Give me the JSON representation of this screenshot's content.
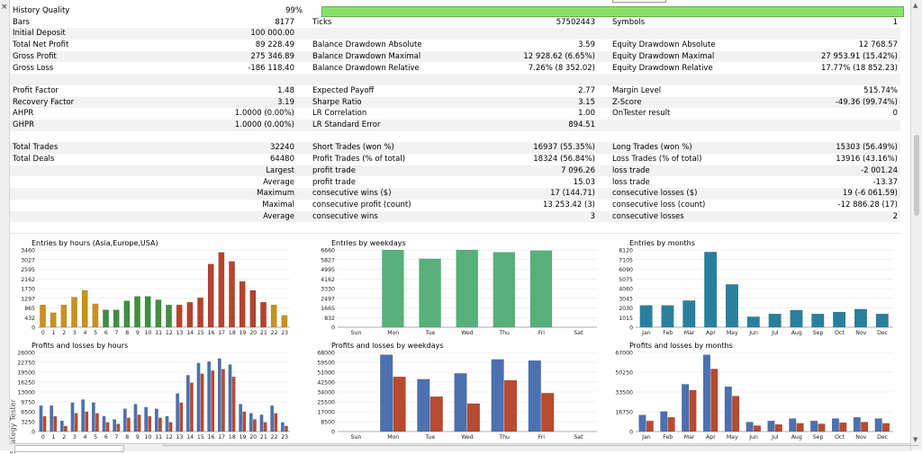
{
  "window": {
    "side_label": "Strategy Tester"
  },
  "history_quality": {
    "label": "History Quality",
    "value": "99%",
    "fill": 0.99
  },
  "stats_rows": [
    {
      "alt": false,
      "cells": [
        [
          "Bars",
          "8177"
        ],
        [
          "Ticks",
          "57502443"
        ],
        [
          "Symbols",
          "1"
        ]
      ]
    },
    {
      "alt": true,
      "cells": [
        [
          "Initial Deposit",
          "100 000.00"
        ],
        [
          "",
          ""
        ],
        [
          "",
          ""
        ]
      ]
    },
    {
      "alt": false,
      "cells": [
        [
          "Total Net Profit",
          "89 228.49"
        ],
        [
          "Balance Drawdown Absolute",
          "3.59"
        ],
        [
          "Equity Drawdown Absolute",
          "12 768.57"
        ]
      ]
    },
    {
      "alt": true,
      "cells": [
        [
          "Gross Profit",
          "275 346.89"
        ],
        [
          "Balance Drawdown Maximal",
          "12 928.62 (6.65%)"
        ],
        [
          "Equity Drawdown Maximal",
          "27 953.91 (15.42%)"
        ]
      ]
    },
    {
      "alt": false,
      "cells": [
        [
          "Gross Loss",
          "-186 118.40"
        ],
        [
          "Balance Drawdown Relative",
          "7.26% (8 352.02)"
        ],
        [
          "Equity Drawdown Relative",
          "17.77% (18 852.23)"
        ]
      ]
    },
    {
      "alt": true,
      "cells": [
        [
          "",
          ""
        ],
        [
          "",
          ""
        ],
        [
          "",
          ""
        ]
      ]
    },
    {
      "alt": false,
      "cells": [
        [
          "Profit Factor",
          "1.48"
        ],
        [
          "Expected Payoff",
          "2.77"
        ],
        [
          "Margin Level",
          "515.74%"
        ]
      ]
    },
    {
      "alt": true,
      "cells": [
        [
          "Recovery Factor",
          "3.19"
        ],
        [
          "Sharpe Ratio",
          "3.15"
        ],
        [
          "Z-Score",
          "-49.36 (99.74%)"
        ]
      ]
    },
    {
      "alt": false,
      "cells": [
        [
          "AHPR",
          "1.0000 (0.00%)"
        ],
        [
          "LR Correlation",
          "1.00"
        ],
        [
          "OnTester result",
          "0"
        ]
      ]
    },
    {
      "alt": true,
      "cells": [
        [
          "GHPR",
          "1.0000 (0.00%)"
        ],
        [
          "LR Standard Error",
          "894.51"
        ],
        [
          "",
          ""
        ]
      ]
    },
    {
      "alt": false,
      "cells": [
        [
          "",
          ""
        ],
        [
          "",
          ""
        ],
        [
          "",
          ""
        ]
      ]
    },
    {
      "alt": true,
      "cells": [
        [
          "Total Trades",
          "32240"
        ],
        [
          "Short Trades (won %)",
          "16937 (55.35%)"
        ],
        [
          "Long Trades (won %)",
          "15303 (56.49%)"
        ]
      ]
    },
    {
      "alt": false,
      "cells": [
        [
          "Total Deals",
          "64480"
        ],
        [
          "Profit Trades (% of total)",
          "18324 (56.84%)"
        ],
        [
          "Loss Trades (% of total)",
          "13916 (43.16%)"
        ]
      ]
    },
    {
      "alt": true,
      "cells": [
        [
          "Largest",
          ""
        ],
        [
          "profit trade",
          "7 096.26"
        ],
        [
          "loss trade",
          "-2 001.24"
        ]
      ],
      "right_first": true
    },
    {
      "alt": false,
      "cells": [
        [
          "Average",
          ""
        ],
        [
          "profit trade",
          "15.03"
        ],
        [
          "loss trade",
          "-13.37"
        ]
      ],
      "right_first": true
    },
    {
      "alt": true,
      "cells": [
        [
          "Maximum",
          ""
        ],
        [
          "consecutive wins ($)",
          "17 (144.71)"
        ],
        [
          "consecutive losses ($)",
          "19 (-6 061.59)"
        ]
      ],
      "right_first": true
    },
    {
      "alt": false,
      "cells": [
        [
          "Maximal",
          ""
        ],
        [
          "consecutive profit (count)",
          "13 253.42 (3)"
        ],
        [
          "consecutive loss (count)",
          "-12 886.28 (17)"
        ]
      ],
      "right_first": true
    },
    {
      "alt": true,
      "cells": [
        [
          "Average",
          ""
        ],
        [
          "consecutive wins",
          "3"
        ],
        [
          "consecutive losses",
          "2"
        ]
      ],
      "right_first": true
    }
  ],
  "chart_data": [
    {
      "type": "bar",
      "title": "Entries by hours (Asia,Europe,USA)",
      "categories": [
        "0",
        "1",
        "2",
        "3",
        "4",
        "5",
        "6",
        "7",
        "8",
        "9",
        "10",
        "11",
        "12",
        "13",
        "14",
        "15",
        "16",
        "17",
        "18",
        "19",
        "20",
        "21",
        "22",
        "23"
      ],
      "yticks": [
        "3460",
        "3027",
        "2595",
        "2162",
        "1730",
        "1297",
        "865",
        "432",
        "0"
      ],
      "ylim": [
        0,
        3460
      ],
      "series": [
        {
          "values": [
            1000,
            650,
            1000,
            1350,
            1650,
            1050,
            780,
            780,
            1180,
            1380,
            1380,
            1230,
            1000,
            1000,
            1120,
            1320,
            2830,
            3350,
            2950,
            2050,
            1650,
            1120,
            1000,
            530
          ]
        }
      ],
      "colors": [
        "#c8921e",
        "#c8921e",
        "#c8921e",
        "#c8921e",
        "#c8921e",
        "#c8921e",
        "#3f8f3f",
        "#3f8f3f",
        "#3f8f3f",
        "#3f8f3f",
        "#3f8f3f",
        "#3f8f3f",
        "#3f8f3f",
        "#b5442e",
        "#b5442e",
        "#b5442e",
        "#b5442e",
        "#b5442e",
        "#b5442e",
        "#b5442e",
        "#b5442e",
        "#b5442e",
        "#c8921e",
        "#c8921e"
      ]
    },
    {
      "type": "bar",
      "title": "Entries by weekdays",
      "categories": [
        "Sun",
        "Mon",
        "Tue",
        "Wed",
        "Thu",
        "Fri",
        "Sat"
      ],
      "yticks": [
        "6660",
        "5827",
        "4995",
        "4162",
        "3330",
        "2497",
        "1665",
        "832",
        "0"
      ],
      "ylim": [
        0,
        6660
      ],
      "series": [
        {
          "values": [
            0,
            6660,
            5900,
            6660,
            6460,
            6600,
            0
          ]
        }
      ],
      "colors": [
        "#57b07a"
      ]
    },
    {
      "type": "bar",
      "title": "Entries by months",
      "categories": [
        "Jan",
        "Feb",
        "Mar",
        "Apr",
        "May",
        "Jun",
        "Jul",
        "Aug",
        "Sep",
        "Oct",
        "Nov",
        "Dec"
      ],
      "yticks": [
        "8120",
        "7105",
        "6090",
        "5075",
        "4060",
        "3045",
        "2030",
        "1015",
        "0"
      ],
      "ylim": [
        0,
        8120
      ],
      "series": [
        {
          "values": [
            2300,
            2300,
            2800,
            7900,
            4500,
            1100,
            1400,
            1800,
            1400,
            1600,
            1900,
            1400
          ]
        }
      ],
      "colors": [
        "#2a7f9e"
      ]
    },
    {
      "type": "bar",
      "title": "Profits and losses by hours",
      "categories": [
        "0",
        "1",
        "2",
        "3",
        "4",
        "5",
        "6",
        "7",
        "8",
        "9",
        "10",
        "11",
        "12",
        "13",
        "14",
        "15",
        "16",
        "17",
        "18",
        "19",
        "20",
        "21",
        "22",
        "23"
      ],
      "yticks": [
        "26000",
        "22750",
        "19500",
        "16250",
        "13000",
        "9750",
        "6500",
        "3250",
        "0"
      ],
      "ylim": [
        0,
        26000
      ],
      "series": [
        {
          "values": [
            8500,
            8500,
            3500,
            9500,
            10500,
            9500,
            5000,
            4000,
            7500,
            9000,
            8000,
            7500,
            5000,
            12500,
            18500,
            22500,
            23000,
            24000,
            22000,
            9000,
            6000,
            5500,
            8500,
            3000
          ]
        },
        {
          "values": [
            5000,
            5000,
            1800,
            6000,
            6500,
            6000,
            3000,
            2500,
            4500,
            5500,
            5000,
            4500,
            3000,
            9500,
            16000,
            19000,
            20000,
            20500,
            18000,
            6500,
            4000,
            3000,
            6000,
            1800
          ]
        }
      ],
      "colors": [
        "#4c70b0",
        "#b84a30"
      ]
    },
    {
      "type": "bar",
      "title": "Profits and losses by weekdays",
      "categories": [
        "Sun",
        "Mon",
        "Tue",
        "Wed",
        "Thu",
        "Fri",
        "Sat"
      ],
      "yticks": [
        "68000",
        "59500",
        "51000",
        "42500",
        "34000",
        "25500",
        "17000",
        "8500",
        "0"
      ],
      "ylim": [
        0,
        68000
      ],
      "series": [
        {
          "values": [
            0,
            66000,
            45000,
            50000,
            62000,
            61000,
            0
          ]
        },
        {
          "values": [
            0,
            47000,
            30000,
            24000,
            44000,
            33000,
            0
          ]
        }
      ],
      "colors": [
        "#4c70b0",
        "#b84a30"
      ]
    },
    {
      "type": "bar",
      "title": "Profits and losses by months",
      "categories": [
        "Jan",
        "Feb",
        "Mar",
        "Apr",
        "May",
        "Jun",
        "Jul",
        "Aug",
        "Sep",
        "Oct",
        "Nov",
        "Dec"
      ],
      "yticks": [
        "67000",
        "50250",
        "33500",
        "16750",
        "0"
      ],
      "ylim": [
        0,
        67000
      ],
      "series": [
        {
          "values": [
            14000,
            17000,
            40000,
            65000,
            38000,
            8000,
            9000,
            11000,
            9000,
            11000,
            12000,
            11000
          ]
        },
        {
          "values": [
            9000,
            12000,
            35000,
            53000,
            30000,
            5000,
            6000,
            7000,
            6500,
            7500,
            8000,
            7000
          ]
        }
      ],
      "colors": [
        "#4c70b0",
        "#b84a30"
      ]
    }
  ]
}
